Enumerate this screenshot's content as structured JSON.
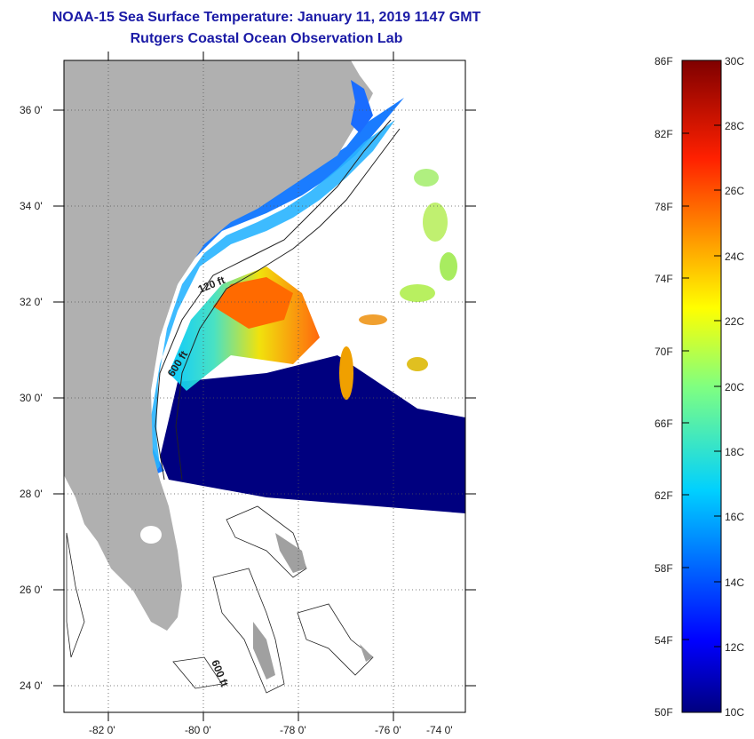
{
  "title": {
    "line1": "NOAA-15 Sea Surface Temperature:  January 11, 2019 1147 GMT",
    "line2": "Rutgers Coastal Ocean Observation Lab"
  },
  "map": {
    "lat_labels": [
      "36 0'",
      "34 0'",
      "32 0'",
      "30 0'",
      "28 0'",
      "26 0'",
      "24 0'"
    ],
    "lon_labels": [
      "-82 0'",
      "-80 0'",
      "-78 0'",
      "-76 0'",
      "-74 0'"
    ],
    "contour_labels": [
      "120 ft",
      "600 ft",
      "600 ft"
    ],
    "colors": {
      "land": "#b0b0b0",
      "no_data": "#ffffff",
      "cold": "#00007f",
      "warm": "#ff8000"
    }
  },
  "colorbar": {
    "fahrenheit_labels": [
      "86F",
      "82F",
      "78F",
      "74F",
      "70F",
      "66F",
      "62F",
      "58F",
      "54F",
      "50F"
    ],
    "celsius_labels": [
      "30C",
      "28C",
      "26C",
      "24C",
      "22C",
      "20C",
      "18C",
      "16C",
      "14C",
      "12C",
      "10C"
    ],
    "range_f": [
      50,
      86
    ],
    "range_c": [
      10,
      30
    ]
  }
}
